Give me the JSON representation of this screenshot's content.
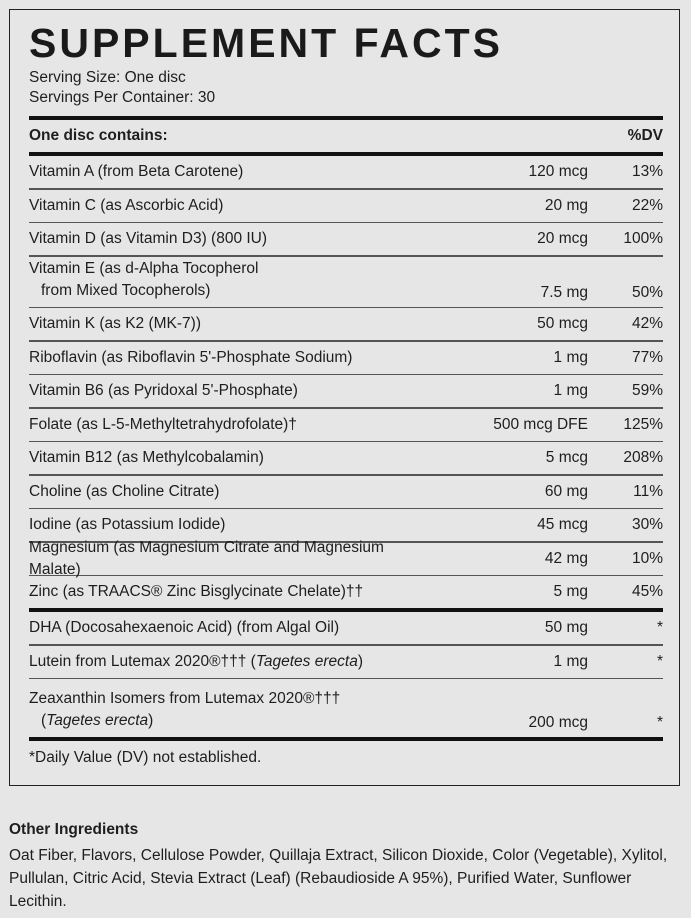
{
  "title": "SUPPLEMENT FACTS",
  "serving_size": "Serving Size: One disc",
  "servings_per_container": "Servings Per Container: 30",
  "header": {
    "contains": "One disc contains:",
    "dv": "%DV"
  },
  "nutrients": [
    {
      "name": "Vitamin A (from Beta Carotene)",
      "amount": "120 mcg",
      "dv": "13%"
    },
    {
      "name": "Vitamin C (as Ascorbic Acid)",
      "amount": "20 mg",
      "dv": "22%"
    },
    {
      "name": "Vitamin D (as Vitamin D3) (800 IU)",
      "amount": "20 mcg",
      "dv": "100%"
    },
    {
      "name": "Vitamin E (as d-Alpha Tocopherol",
      "name2": "from Mixed Tocopherols)",
      "amount": "7.5 mg",
      "dv": "50%"
    },
    {
      "name": "Vitamin K (as K2 (MK-7))",
      "amount": "50 mcg",
      "dv": "42%"
    },
    {
      "name": "Riboflavin (as Riboflavin 5'-Phosphate Sodium)",
      "amount": "1 mg",
      "dv": "77%"
    },
    {
      "name": "Vitamin B6 (as Pyridoxal 5'-Phosphate)",
      "amount": "1 mg",
      "dv": "59%"
    },
    {
      "name": "Folate (as L-5-Methyltetrahydrofolate)†",
      "amount": "500 mcg DFE",
      "dv": "125%"
    },
    {
      "name": "Vitamin B12 (as Methylcobalamin)",
      "amount": "5 mcg",
      "dv": "208%"
    },
    {
      "name": "Choline (as Choline Citrate)",
      "amount": "60 mg",
      "dv": "11%"
    },
    {
      "name": "Iodine (as Potassium Iodide)",
      "amount": "45 mcg",
      "dv": "30%"
    },
    {
      "name": "Magnesium (as Magnesium Citrate and Magnesium Malate)",
      "amount": "42 mg",
      "dv": "10%"
    },
    {
      "name": "Zinc (as TRAACS® Zinc Bisglycinate Chelate)††",
      "amount": "5 mg",
      "dv": "45%"
    }
  ],
  "other_nutrients": [
    {
      "name": "DHA (Docosahexaenoic Acid) (from Algal Oil)",
      "amount": "50 mg",
      "dv": "*"
    },
    {
      "name": "Lutein from Lutemax 2020®††† (",
      "italic": "Tagetes erecta",
      "close": ")",
      "amount": "1 mg",
      "dv": "*"
    },
    {
      "name": "Zeaxanthin Isomers from Lutemax 2020®†††",
      "open": "(",
      "italic": "Tagetes erecta",
      "close": ")",
      "amount": "200 mcg",
      "dv": "*"
    }
  ],
  "footnote": "*Daily Value (DV) not established.",
  "other_ingredients": {
    "heading": "Other Ingredients",
    "text": "Oat Fiber, Flavors, Cellulose Powder, Quillaja Extract, Silicon Dioxide, Color (Vegetable), Xylitol, Pullulan, Citric Acid, Stevia Extract (Leaf) (Rebaudioside A 95%), Purified Water, Sunflower Lecithin."
  }
}
